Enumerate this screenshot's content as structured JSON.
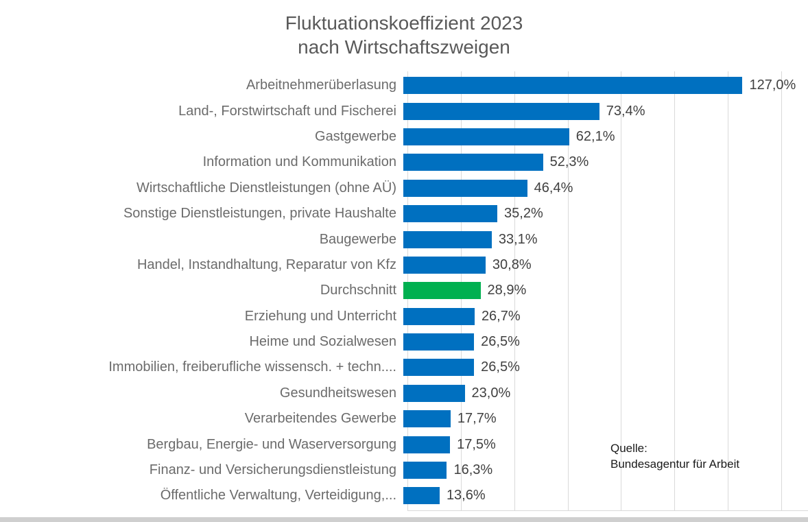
{
  "chart_data": {
    "type": "bar",
    "orientation": "horizontal",
    "title": "Fluktuationskoeffizient 2023 nach Wirtschaftszweigen",
    "title_lines": [
      "Fluktuationskoeffizient 2023",
      "nach Wirtschaftszweigen"
    ],
    "categories": [
      "Arbeitnehmerüberlasung",
      "Land-, Forstwirtschaft und Fischerei",
      "Gastgewerbe",
      "Information und Kommunikation",
      "Wirtschaftliche Dienstleistungen (ohne AÜ)",
      "Sonstige Dienstleistungen, private Haushalte",
      "Baugewerbe",
      "Handel, Instandhaltung, Reparatur von Kfz",
      "Durchschnitt",
      "Erziehung und Unterricht",
      "Heime und Sozialwesen",
      "Immobilien, freiberufliche wissensch. + techn....",
      "Gesundheitswesen",
      "Verarbeitendes Gewerbe",
      "Bergbau, Energie- und Waserversorgung",
      "Finanz- und Versicherungsdienstleistung",
      "Öffentliche Verwaltung, Verteidigung,..."
    ],
    "values": [
      127.0,
      73.4,
      62.1,
      52.3,
      46.4,
      35.2,
      33.1,
      30.8,
      28.9,
      26.7,
      26.5,
      26.5,
      23.0,
      17.7,
      17.5,
      16.3,
      13.6
    ],
    "value_labels": [
      "127,0%",
      "73,4%",
      "62,1%",
      "52,3%",
      "46,4%",
      "35,2%",
      "33,1%",
      "30,8%",
      "28,9%",
      "26,7%",
      "26,5%",
      "26,5%",
      "23,0%",
      "17,7%",
      "17,5%",
      "16,3%",
      "13,6%"
    ],
    "highlight_index": 8,
    "xlim": [
      0,
      150
    ],
    "grid_step": 20,
    "grid": true,
    "legend": false,
    "source_lines": [
      "Quelle:",
      "Bundesagentur für Arbeit"
    ]
  },
  "source": {
    "line1": "Quelle:",
    "line2": "Bundesagentur für Arbeit"
  },
  "colors": {
    "bar": "#0070C0",
    "highlight": "#00B050",
    "gridline": "#D9D9D9",
    "title_text": "#595959",
    "category_text": "#6B6B6B",
    "value_text": "#404040",
    "source_text": "#1A1A1A",
    "background": "#FFFFFF",
    "bottom_strip": "#CFCFCF"
  }
}
